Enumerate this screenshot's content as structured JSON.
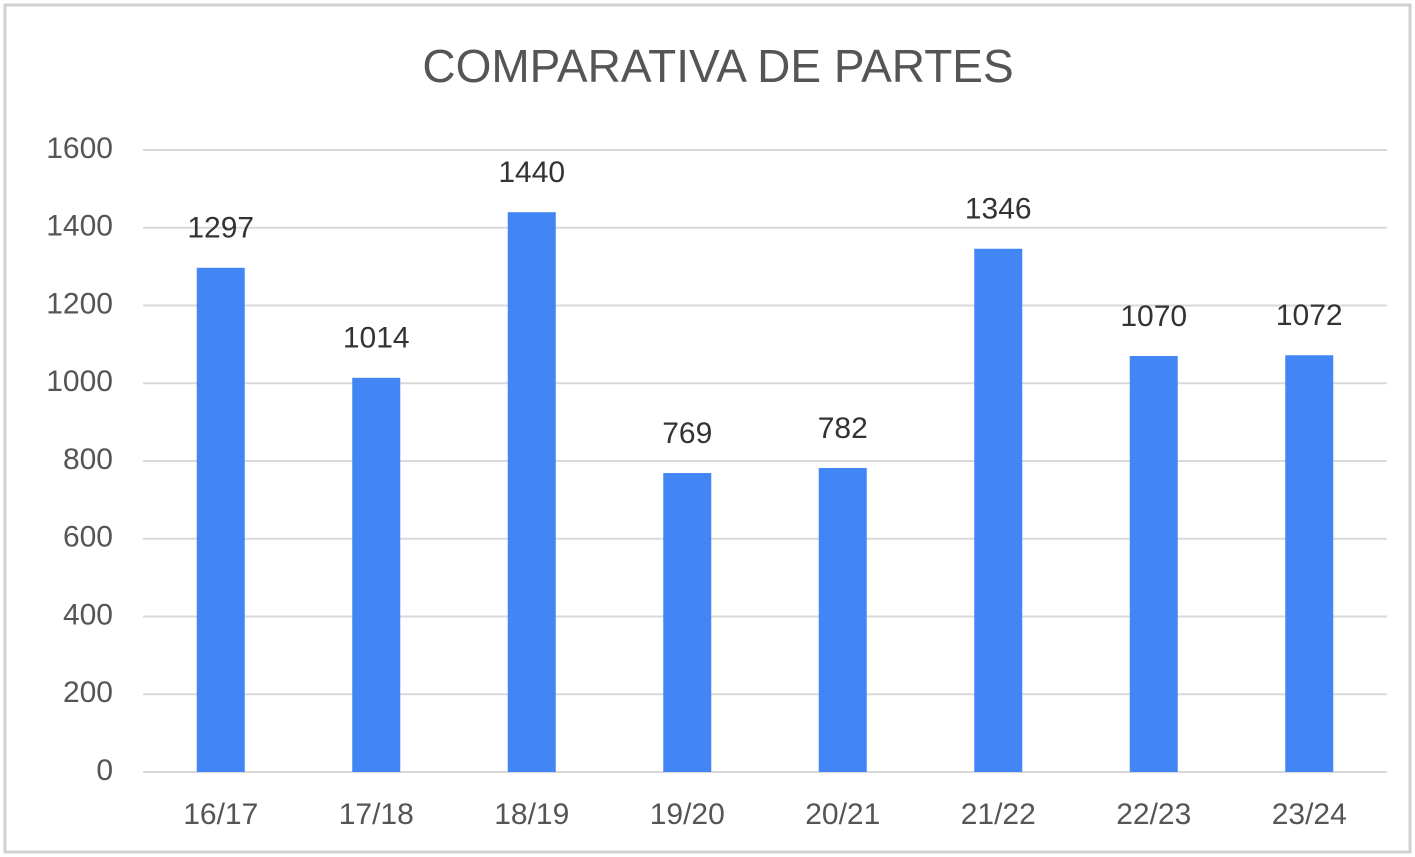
{
  "chart_data": {
    "type": "bar",
    "title": "COMPARATIVA DE PARTES",
    "categories": [
      "16/17",
      "17/18",
      "18/19",
      "19/20",
      "20/21",
      "21/22",
      "22/23",
      "23/24"
    ],
    "values": [
      1297,
      1014,
      1440,
      769,
      782,
      1346,
      1070,
      1072
    ],
    "color": "#4285f4",
    "ylim": [
      0,
      1600
    ],
    "yticks": [
      0,
      200,
      400,
      600,
      800,
      1000,
      1200,
      1400,
      1600
    ],
    "grid": true
  }
}
